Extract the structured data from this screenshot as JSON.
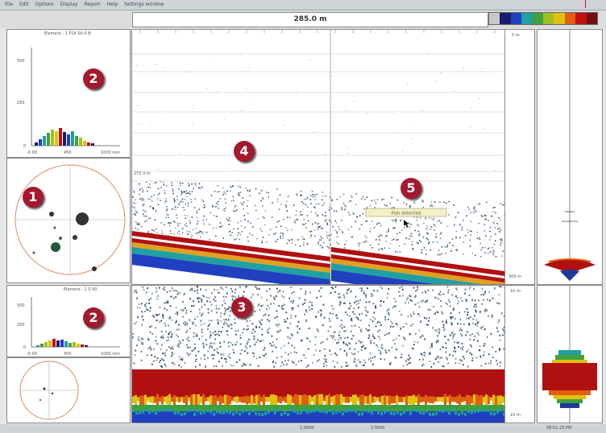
{
  "header": {
    "depth_display": "285.0 m",
    "palette_colors": [
      "#c8c8c8",
      "#1a1a6e",
      "#2040c0",
      "#20a0a0",
      "#40a040",
      "#a0c020",
      "#e0c010",
      "#e06010",
      "#c01010",
      "#701010"
    ]
  },
  "menu": [
    "File",
    "Edit",
    "Options",
    "Display",
    "Report",
    "Help",
    "Settings window"
  ],
  "upper_left": {
    "stats_label": "Element : 1 P1A 00.0 B",
    "y_ticks": [
      "500",
      "250",
      "0"
    ],
    "x_ticks": [
      "-0.00",
      "450",
      "1000 mm"
    ]
  },
  "lower_left": {
    "stats_label": "Element : 1 S 00",
    "y_ticks": [
      "500",
      "250",
      "0"
    ],
    "x_ticks": [
      "-0.00",
      "450",
      "1000 mm"
    ]
  },
  "echogram": {
    "top_right_label": "0 m",
    "mid_left_label": "275 0 m",
    "tooltip": "Fish detected",
    "bottom_right_label": "300 m"
  },
  "zoom": {
    "top_right_label": "10 m",
    "bottom_right_label": "10 m"
  },
  "status": {
    "left": "1:0000",
    "mid": "1:0000",
    "right": "08:51:23 PM"
  },
  "badges": {
    "b1": "1",
    "b2a": "2",
    "b2b": "2",
    "b3": "3",
    "b4": "4",
    "b5": "5"
  }
}
